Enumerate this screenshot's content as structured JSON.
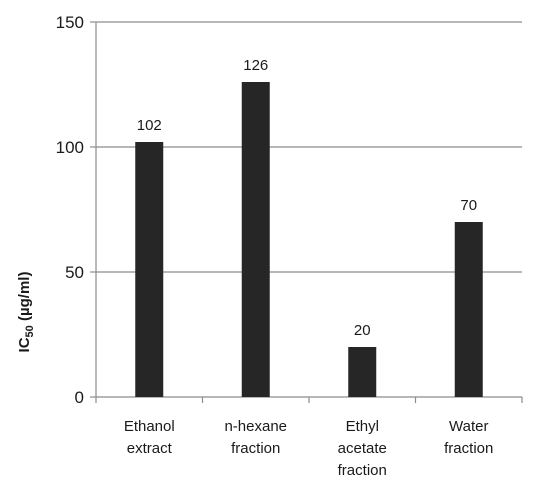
{
  "chart_data": {
    "type": "bar",
    "categories": [
      [
        "Ethanol",
        "extract"
      ],
      [
        "n-hexane",
        "fraction"
      ],
      [
        "Ethyl",
        "acetate",
        "fraction"
      ],
      [
        "Water",
        "fraction"
      ]
    ],
    "values": [
      102,
      126,
      20,
      70
    ],
    "data_labels": [
      "102",
      "126",
      "20",
      "70"
    ],
    "title": "",
    "xlabel": "",
    "ylabel": {
      "prefix": "IC",
      "subscript": "50",
      "suffix": " (µg/ml)"
    },
    "ylim": [
      0,
      150
    ],
    "yticks": [
      0,
      50,
      100,
      150
    ],
    "ytick_labels": [
      "0",
      "50",
      "100",
      "150"
    ],
    "grid": true,
    "colors": {
      "bar": "#262626",
      "axis": "#8c8c8c",
      "text": "#1a1a1a"
    }
  }
}
